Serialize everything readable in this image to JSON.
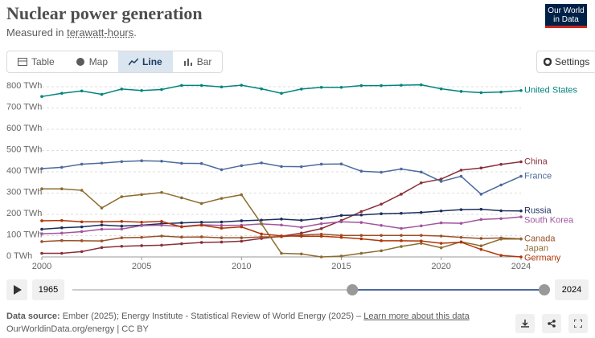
{
  "header": {
    "title": "Nuclear power generation",
    "subtitle_prefix": "Measured in",
    "subtitle_link": "terawatt-hours",
    "subtitle_suffix": ".",
    "logo": "Our World in Data"
  },
  "tabs": [
    "Table",
    "Map",
    "Line",
    "Bar"
  ],
  "settings": "Settings",
  "timeline": {
    "min": 1965,
    "max": 2024
  },
  "footer": {
    "source_label": "Data source:",
    "source": "Ember (2025); Energy Institute - Statistical Review of World Energy (2025) –",
    "learn_more": "Learn more about this data",
    "credit": "OurWorldinData.org/energy | CC BY"
  },
  "chart_data": {
    "type": "line",
    "x": [
      2000,
      2001,
      2002,
      2003,
      2004,
      2005,
      2006,
      2007,
      2008,
      2009,
      2010,
      2011,
      2012,
      2013,
      2014,
      2015,
      2016,
      2017,
      2018,
      2019,
      2020,
      2021,
      2022,
      2023,
      2024
    ],
    "xlim": [
      2000,
      2024
    ],
    "xticks": [
      2000,
      2005,
      2010,
      2015,
      2020,
      2024
    ],
    "ylim": [
      0,
      800
    ],
    "yticks": [
      {
        "value": 0,
        "label": "0 TWh"
      },
      {
        "value": 100,
        "label": "100 TWh"
      },
      {
        "value": 200,
        "label": "200 TWh"
      },
      {
        "value": 300,
        "label": "300 TWh"
      },
      {
        "value": 400,
        "label": "400 TWh"
      },
      {
        "value": 500,
        "label": "500 TWh"
      },
      {
        "value": 600,
        "label": "600 TWh"
      },
      {
        "value": 700,
        "label": "700 TWh"
      },
      {
        "value": 800,
        "label": "800 TWh"
      }
    ],
    "grid": true,
    "series": [
      {
        "name": "United States",
        "color": "#00847e",
        "values": [
          754,
          769,
          780,
          764,
          789,
          782,
          787,
          806,
          806,
          799,
          807,
          790,
          769,
          789,
          797,
          797,
          805,
          805,
          807,
          809,
          790,
          778,
          772,
          775,
          782
        ]
      },
      {
        "name": "China",
        "color": "#883039",
        "values": [
          17,
          17,
          25,
          44,
          50,
          53,
          55,
          62,
          68,
          70,
          74,
          87,
          97,
          112,
          133,
          171,
          213,
          248,
          295,
          348,
          366,
          408,
          418,
          435,
          447
        ]
      },
      {
        "name": "France",
        "color": "#4c6a9c",
        "values": [
          415,
          421,
          436,
          441,
          448,
          452,
          450,
          440,
          439,
          410,
          429,
          442,
          425,
          424,
          436,
          437,
          403,
          398,
          413,
          399,
          355,
          379,
          295,
          338,
          379
        ]
      },
      {
        "name": "Russia",
        "color": "#1d2f5e",
        "values": [
          130,
          137,
          141,
          150,
          145,
          149,
          156,
          160,
          163,
          164,
          170,
          173,
          178,
          172,
          181,
          195,
          197,
          203,
          205,
          209,
          216,
          222,
          224,
          217,
          216
        ]
      },
      {
        "name": "South Korea",
        "color": "#a2559c",
        "values": [
          109,
          112,
          119,
          130,
          131,
          147,
          149,
          143,
          151,
          148,
          149,
          155,
          150,
          139,
          156,
          165,
          162,
          148,
          134,
          146,
          160,
          158,
          176,
          180,
          188
        ]
      },
      {
        "name": "Canada",
        "color": "#9a5129",
        "values": [
          72,
          77,
          76,
          75,
          90,
          92,
          98,
          93,
          94,
          90,
          90,
          94,
          95,
          103,
          107,
          101,
          101,
          101,
          101,
          101,
          98,
          92,
          87,
          89,
          85
        ]
      },
      {
        "name": "Japan",
        "color": "#8c6b2e",
        "values": [
          320,
          320,
          313,
          230,
          283,
          293,
          303,
          278,
          251,
          275,
          292,
          156,
          17,
          14,
          0,
          4,
          17,
          29,
          49,
          64,
          43,
          71,
          52,
          84,
          84
        ]
      },
      {
        "name": "Germany",
        "color": "#b13507",
        "values": [
          170,
          171,
          165,
          165,
          167,
          163,
          167,
          141,
          149,
          135,
          141,
          108,
          99,
          97,
          97,
          92,
          85,
          76,
          76,
          75,
          64,
          69,
          35,
          7,
          0
        ]
      }
    ]
  }
}
